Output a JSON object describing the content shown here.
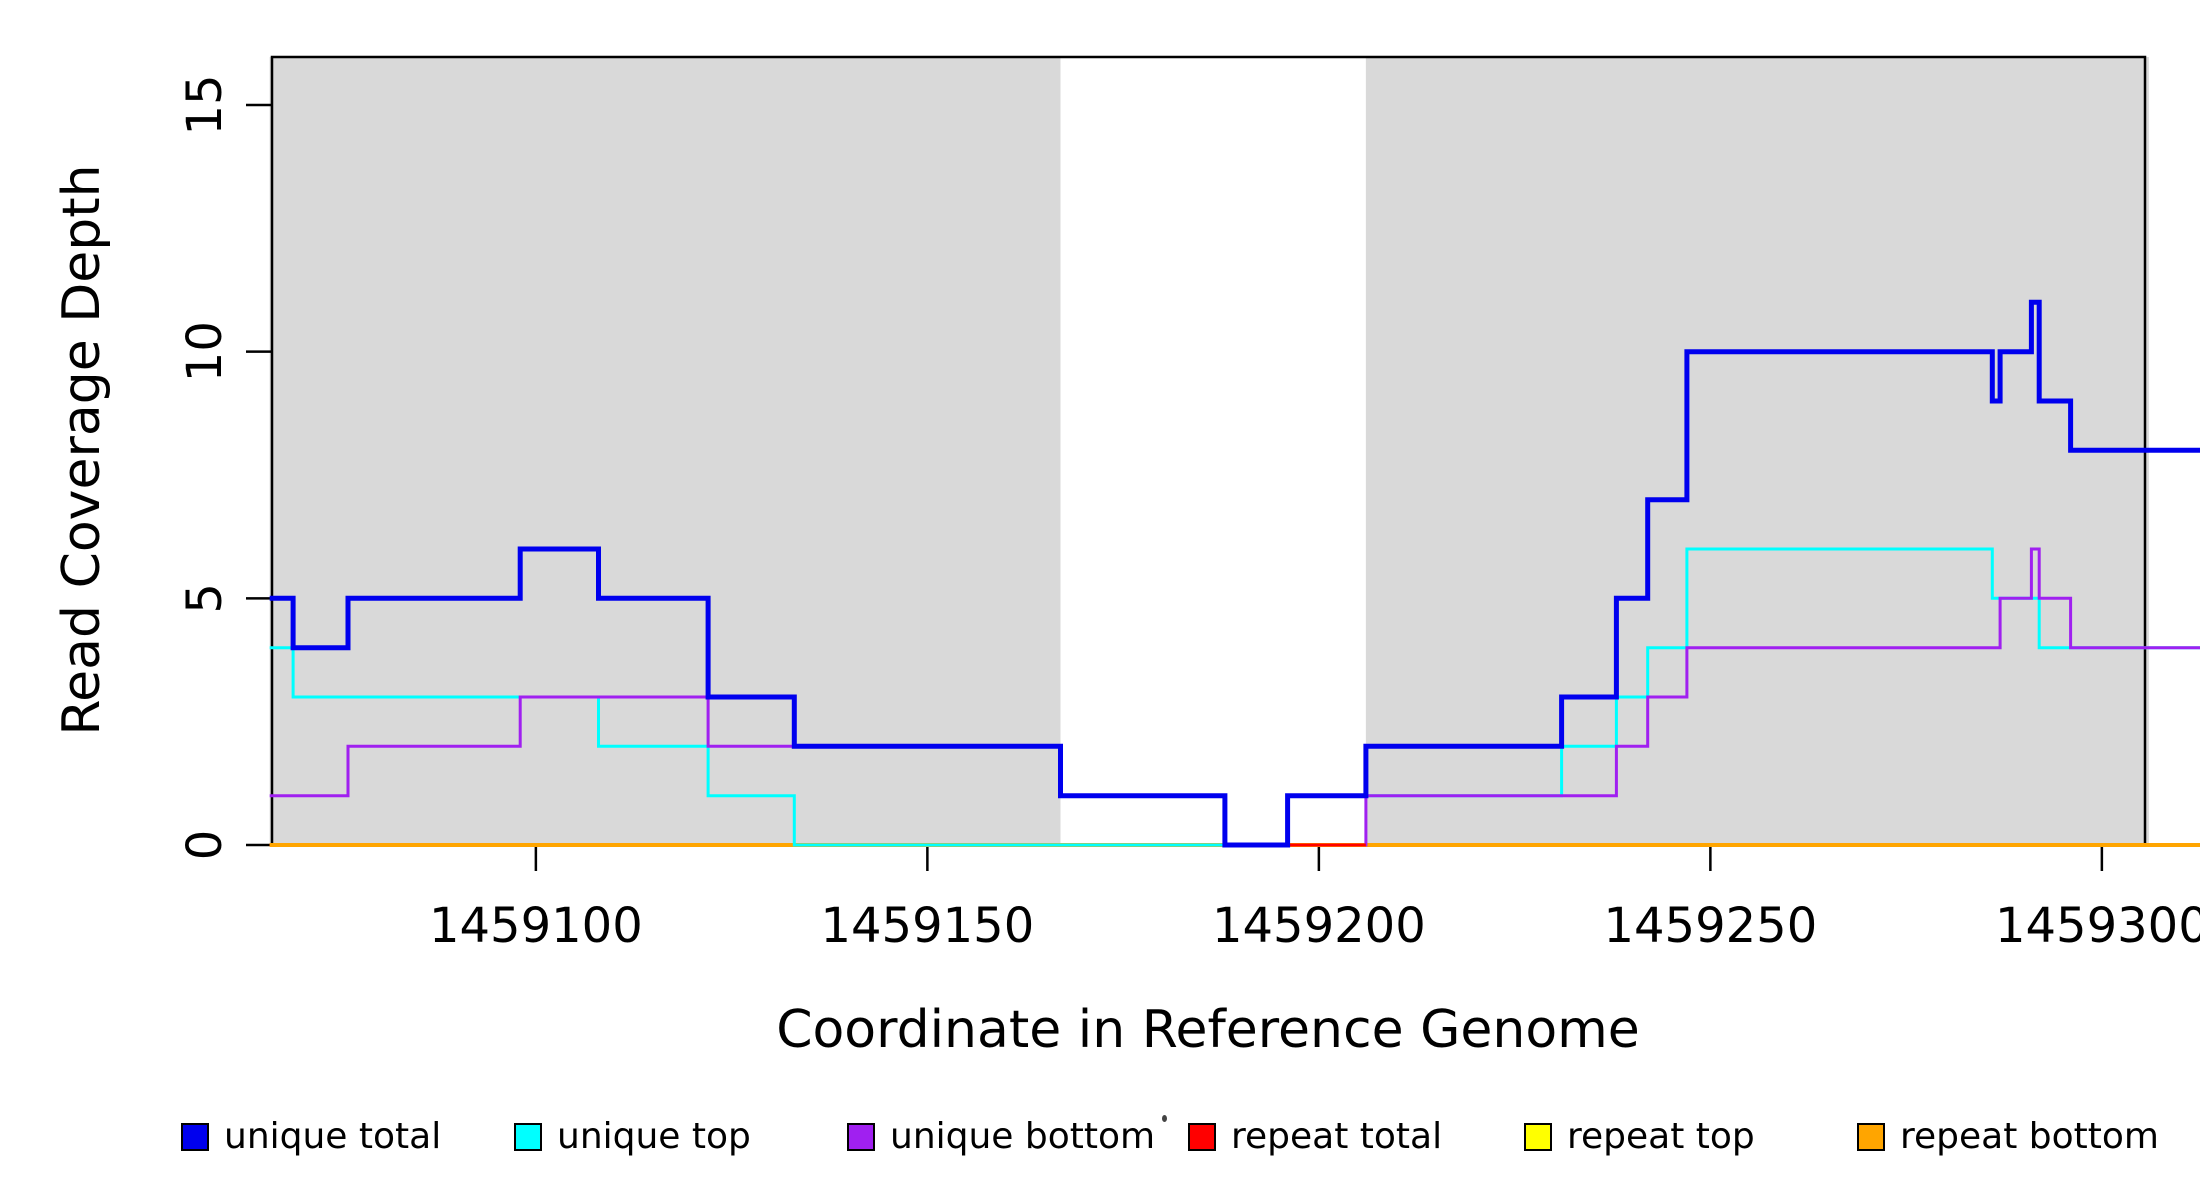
{
  "figure": {
    "x_axis_title": "Coordinate in Reference Genome",
    "y_axis_title": "Read Coverage Depth"
  },
  "chart_data": {
    "type": "line",
    "subtype": "step-coverage-plot",
    "title": "",
    "xlabel": "Coordinate in Reference Genome",
    "ylabel": "Read Coverage Depth",
    "x_range": [
      1459066,
      1459313
    ],
    "y_range": [
      0,
      16
    ],
    "grid": "off",
    "x_ticks": [
      {
        "value": 1459100,
        "label": "1459100"
      },
      {
        "value": 1459150,
        "label": "1459150"
      },
      {
        "value": 1459200,
        "label": "1459200"
      },
      {
        "value": 1459250,
        "label": "1459250"
      },
      {
        "value": 1459300,
        "label": "1459300"
      }
    ],
    "y_ticks": [
      {
        "value": 0,
        "label": "0"
      },
      {
        "value": 5,
        "label": "5"
      },
      {
        "value": 10,
        "label": "10"
      },
      {
        "value": 15,
        "label": "15"
      }
    ],
    "shaded_region_color": "#d9d9d9",
    "shaded_regions": [
      {
        "x_start": 1459066,
        "x_end": 1459167
      },
      {
        "x_start": 1459206,
        "x_end": 1459306
      }
    ],
    "baseline_red_segment": {
      "x_start": 1459196,
      "x_end": 1459206,
      "y": 0
    },
    "draw_order": [
      "repeat_top",
      "repeat_total",
      "repeat_bottom",
      "unique_top",
      "unique_bottom",
      "baseline_red_segment",
      "unique_total"
    ],
    "series": [
      {
        "key": "unique_total",
        "name": "unique total",
        "color": "#0000EE",
        "line_width": 5,
        "steps": [
          [
            1459066,
            5
          ],
          [
            1459069,
            4
          ],
          [
            1459076,
            5
          ],
          [
            1459098,
            6
          ],
          [
            1459108,
            5
          ],
          [
            1459122,
            3
          ],
          [
            1459133,
            2
          ],
          [
            1459167,
            1
          ],
          [
            1459188,
            0
          ],
          [
            1459196,
            1
          ],
          [
            1459206,
            2
          ],
          [
            1459231,
            3
          ],
          [
            1459238,
            5
          ],
          [
            1459242,
            7
          ],
          [
            1459247,
            10
          ],
          [
            1459286,
            9
          ],
          [
            1459287,
            10
          ],
          [
            1459291,
            11
          ],
          [
            1459292,
            9
          ],
          [
            1459296,
            8
          ]
        ]
      },
      {
        "key": "unique_top",
        "name": "unique top",
        "color": "#00FFFF",
        "line_width": 3,
        "steps": [
          [
            1459066,
            4
          ],
          [
            1459069,
            3
          ],
          [
            1459108,
            2
          ],
          [
            1459122,
            1
          ],
          [
            1459133,
            0
          ],
          [
            1459196,
            1
          ],
          [
            1459231,
            2
          ],
          [
            1459238,
            3
          ],
          [
            1459242,
            4
          ],
          [
            1459247,
            6
          ],
          [
            1459286,
            5
          ],
          [
            1459292,
            4
          ]
        ]
      },
      {
        "key": "unique_bottom",
        "name": "unique bottom",
        "color": "#A020F0",
        "line_width": 3,
        "steps": [
          [
            1459066,
            1
          ],
          [
            1459076,
            2
          ],
          [
            1459098,
            3
          ],
          [
            1459122,
            2
          ],
          [
            1459167,
            1
          ],
          [
            1459188,
            0
          ],
          [
            1459206,
            1
          ],
          [
            1459238,
            2
          ],
          [
            1459242,
            3
          ],
          [
            1459247,
            4
          ],
          [
            1459287,
            5
          ],
          [
            1459291,
            6
          ],
          [
            1459292,
            5
          ],
          [
            1459296,
            4
          ]
        ]
      },
      {
        "key": "repeat_total",
        "name": "repeat total",
        "color": "#FF0000",
        "line_width": 3,
        "steps": [
          [
            1459066,
            0
          ]
        ]
      },
      {
        "key": "repeat_top",
        "name": "repeat top",
        "color": "#FFFF00",
        "line_width": 3,
        "steps": [
          [
            1459066,
            0
          ]
        ]
      },
      {
        "key": "repeat_bottom",
        "name": "repeat bottom",
        "color": "#FFA500",
        "line_width": 4,
        "steps": [
          [
            1459066,
            0
          ]
        ]
      }
    ]
  },
  "legend": {
    "items": [
      {
        "label": "unique total",
        "color": "#0000EE"
      },
      {
        "label": "unique top",
        "color": "#00FFFF"
      },
      {
        "label": "unique bottom",
        "color": "#A020F0"
      },
      {
        "label": "repeat total",
        "color": "#FF0000"
      },
      {
        "label": "repeat top",
        "color": "#FFFF00"
      },
      {
        "label": "repeat bottom",
        "color": "#FFA500"
      }
    ]
  }
}
